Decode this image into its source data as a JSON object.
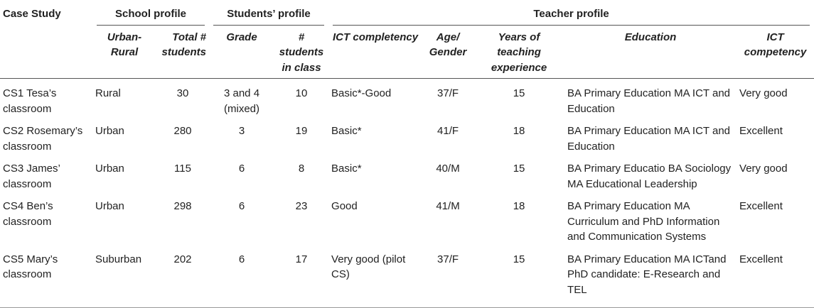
{
  "header": {
    "case_study": "Case Study",
    "school_profile": "School profile",
    "students_profile": "Students’ profile",
    "teacher_profile": "Teacher profile",
    "columns": {
      "urban_rural": "Urban-Rural",
      "total_students": "Total # students",
      "grade": "Grade",
      "students_in_class": "# students in class",
      "student_ict": "ICT completency",
      "age_gender": "Age/ Gender",
      "years_experience": "Years of teaching experience",
      "education": "Education",
      "teacher_ict": "ICT competency"
    }
  },
  "rows": [
    {
      "case": "CS1 Tesa’s classroom",
      "urban_rural": "Rural",
      "total_students": "30",
      "grade": "3 and 4 (mixed)",
      "students_in_class": "10",
      "student_ict": "Basic*-Good",
      "age_gender": "37/F",
      "years": "15",
      "education": "BA Primary Education MA ICT and Education",
      "teacher_ict": "Very good"
    },
    {
      "case": "CS2 Rosemary’s classroom",
      "urban_rural": "Urban",
      "total_students": "280",
      "grade": "3",
      "students_in_class": "19",
      "student_ict": "Basic*",
      "age_gender": "41/F",
      "years": "18",
      "education": "BA Primary Education MA ICT and Education",
      "teacher_ict": "Excellent"
    },
    {
      "case": "CS3 James’ classroom",
      "urban_rural": "Urban",
      "total_students": "115",
      "grade": "6",
      "students_in_class": "8",
      "student_ict": "Basic*",
      "age_gender": "40/M",
      "years": "15",
      "education": "BA Primary Educatio BA Sociology MA Educational Leadership",
      "teacher_ict": "Very good"
    },
    {
      "case": "CS4 Ben’s classroom",
      "urban_rural": "Urban",
      "total_students": "298",
      "grade": "6",
      "students_in_class": "23",
      "student_ict": "Good",
      "age_gender": "41/M",
      "years": "18",
      "education": "BA Primary Education MA Curriculum and PhD Information and Communication Systems",
      "teacher_ict": "Excellent"
    },
    {
      "case": "CS5 Mary’s classroom",
      "urban_rural": "Suburban",
      "total_students": "202",
      "grade": "6",
      "students_in_class": "17",
      "student_ict": "Very good (pilot CS)",
      "age_gender": "37/F",
      "years": "15",
      "education": "BA Primary Education MA ICTand PhD candidate: E-Research and TEL",
      "teacher_ict": "Excellent"
    }
  ]
}
